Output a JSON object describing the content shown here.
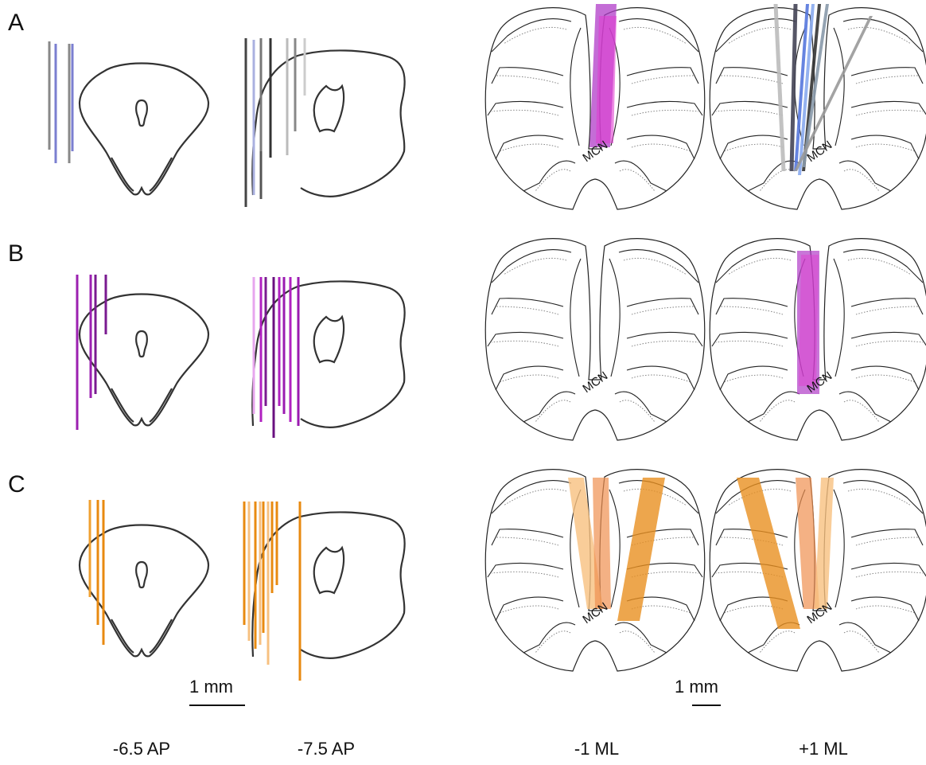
{
  "panels": [
    {
      "label": "A",
      "mcn_labels": [
        "MCN",
        "MCN"
      ]
    },
    {
      "label": "B",
      "mcn_labels": [
        "MCN",
        "MCN"
      ]
    },
    {
      "label": "C",
      "mcn_labels": [
        "MCN",
        "MCN"
      ]
    }
  ],
  "scale_bars": [
    "1 mm",
    "1 mm"
  ],
  "column_labels": [
    "-6.5 AP",
    "-7.5 AP",
    "-1 ML",
    "+1 ML"
  ]
}
